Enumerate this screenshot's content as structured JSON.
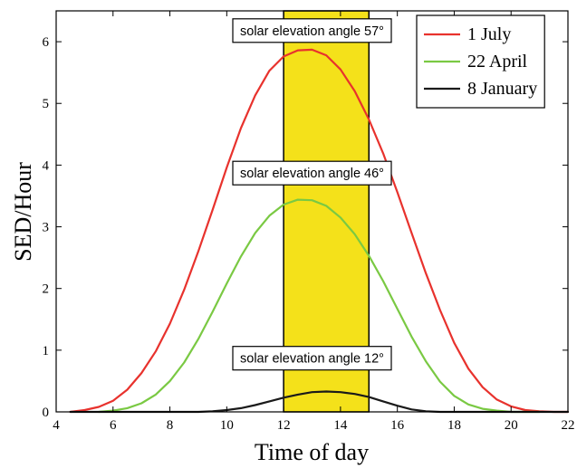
{
  "chart_data": {
    "type": "line",
    "xlabel": "Time of day",
    "ylabel": "SED/Hour",
    "xlim": [
      4,
      22
    ],
    "ylim": [
      0,
      6.5
    ],
    "xticks": [
      4,
      6,
      8,
      10,
      12,
      14,
      16,
      18,
      20,
      22
    ],
    "yticks": [
      0,
      1,
      2,
      3,
      4,
      5,
      6
    ],
    "grid": false,
    "legend_position": "top-right",
    "highlight_band": {
      "x_start": 12,
      "x_end": 15,
      "color": "#f4e11a"
    },
    "series": [
      {
        "name": "1 July",
        "color": "#e8322d",
        "x": [
          4.5,
          5,
          5.5,
          6,
          6.5,
          7,
          7.5,
          8,
          8.5,
          9,
          9.5,
          10,
          10.5,
          11,
          11.5,
          12,
          12.5,
          13,
          13.5,
          14,
          14.5,
          15,
          15.5,
          16,
          16.5,
          17,
          17.5,
          18,
          18.5,
          19,
          19.5,
          20,
          20.5,
          21,
          21.5,
          22
        ],
        "values": [
          0.0,
          0.03,
          0.08,
          0.18,
          0.36,
          0.63,
          0.98,
          1.43,
          1.98,
          2.6,
          3.27,
          3.96,
          4.6,
          5.13,
          5.53,
          5.76,
          5.86,
          5.87,
          5.78,
          5.55,
          5.2,
          4.74,
          4.19,
          3.56,
          2.9,
          2.25,
          1.65,
          1.12,
          0.7,
          0.4,
          0.2,
          0.09,
          0.03,
          0.01,
          0.0,
          0.0
        ]
      },
      {
        "name": "22 April",
        "color": "#7ac943",
        "x": [
          5.5,
          6,
          6.5,
          7,
          7.5,
          8,
          8.5,
          9,
          9.5,
          10,
          10.5,
          11,
          11.5,
          12,
          12.5,
          13,
          13.5,
          14,
          14.5,
          15,
          15.5,
          16,
          16.5,
          17,
          17.5,
          18,
          18.5,
          19,
          19.5,
          20,
          20.5,
          21
        ],
        "values": [
          0.0,
          0.02,
          0.06,
          0.14,
          0.28,
          0.5,
          0.8,
          1.18,
          1.62,
          2.08,
          2.52,
          2.9,
          3.18,
          3.36,
          3.44,
          3.43,
          3.34,
          3.15,
          2.88,
          2.53,
          2.12,
          1.67,
          1.22,
          0.82,
          0.49,
          0.26,
          0.12,
          0.05,
          0.02,
          0.0,
          0.0,
          0.0
        ]
      },
      {
        "name": "8 January",
        "color": "#1a1a1a",
        "x": [
          4.5,
          9,
          9.5,
          10,
          10.5,
          11,
          11.5,
          12,
          12.5,
          13,
          13.5,
          14,
          14.5,
          15,
          15.5,
          16,
          16.5,
          17,
          17.5,
          22
        ],
        "values": [
          0.0,
          0.0,
          0.01,
          0.03,
          0.06,
          0.11,
          0.17,
          0.23,
          0.28,
          0.32,
          0.33,
          0.32,
          0.29,
          0.24,
          0.17,
          0.1,
          0.04,
          0.01,
          0.0,
          0.0
        ]
      }
    ],
    "annotations": [
      {
        "text": "solar elevation angle 57°",
        "x": 13.0,
        "y": 6.18
      },
      {
        "text": "solar elevation angle 46°",
        "x": 13.0,
        "y": 3.87
      },
      {
        "text": "solar elevation angle 12°",
        "x": 13.0,
        "y": 0.87
      }
    ]
  }
}
